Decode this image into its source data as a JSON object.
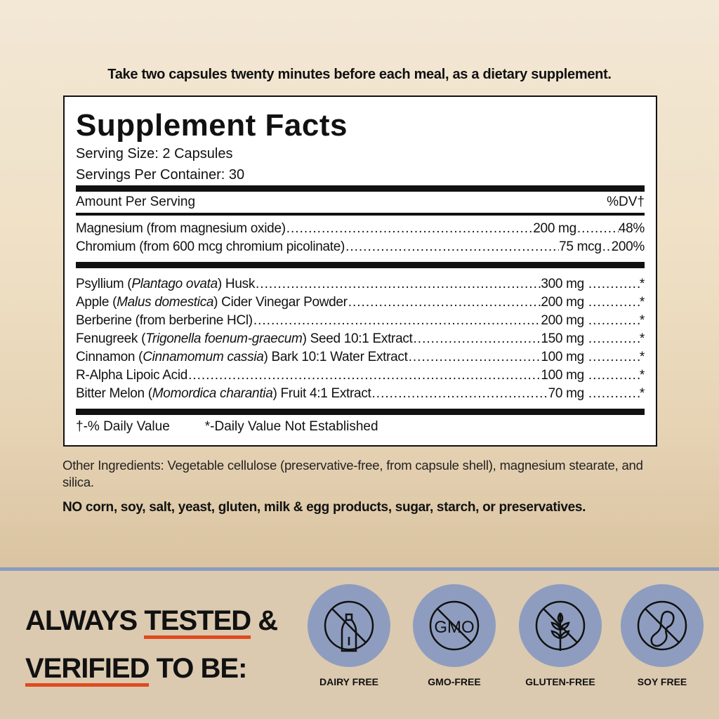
{
  "directions": "Take two capsules twenty minutes before each meal, as a dietary supplement.",
  "facts": {
    "title": "Supplement Facts",
    "serving_size": "Serving Size: 2 Capsules",
    "servings_per_container": "Servings Per Container: 30",
    "amount_header": "Amount Per Serving",
    "dv_header": "%DV†",
    "vitamins": [
      {
        "name": "Magnesium (from magnesium oxide)",
        "amount": "200 mg",
        "dv": "48%"
      },
      {
        "name": "Chromium (from 600 mcg chromium picolinate)",
        "amount": "75 mcg",
        "dv": "200%"
      }
    ],
    "ingredients": [
      {
        "pre": "Psyllium (",
        "latin": "Plantago ovata",
        "post": ") Husk",
        "amount": "300 mg",
        "dv": "*"
      },
      {
        "pre": "Apple (",
        "latin": "Malus domestica",
        "post": ") Cider Vinegar Powder",
        "amount": "200 mg",
        "dv": "*"
      },
      {
        "pre": "Berberine (from berberine HCl)",
        "latin": "",
        "post": "",
        "amount": "200 mg",
        "dv": "*"
      },
      {
        "pre": "Fenugreek (",
        "latin": "Trigonella foenum-graecum",
        "post": ") Seed 10:1 Extract",
        "amount": "150 mg",
        "dv": "*"
      },
      {
        "pre": "Cinnamon (",
        "latin": "Cinnamomum cassia",
        "post": ") Bark 10:1 Water Extract",
        "amount": "100 mg",
        "dv": "*"
      },
      {
        "pre": "R-Alpha Lipoic Acid",
        "latin": "",
        "post": "",
        "amount": "100 mg",
        "dv": "*"
      },
      {
        "pre": "Bitter Melon (",
        "latin": "Momordica charantia",
        "post": ") Fruit 4:1 Extract",
        "amount": "70 mg",
        "dv": "*"
      }
    ],
    "footnote_dv": "†-% Daily Value",
    "footnote_star": "*-Daily Value Not Established"
  },
  "other_ingredients": "Other Ingredients: Vegetable cellulose (preservative-free, from capsule shell), magnesium stearate, and silica.",
  "free_from": "NO corn, soy, salt, yeast, gluten, milk & egg products, sugar, starch, or preservatives.",
  "banner": {
    "line1_a": "ALWAYS ",
    "line1_b": "TESTED",
    "line1_c": " &",
    "line2_a": "VERIFIED",
    "line2_b": " TO BE:",
    "accent_color": "#e04a1e",
    "circle_color": "#8e9dbf",
    "badges": [
      {
        "icon": "no-milk-bottle-icon",
        "label": "DAIRY FREE"
      },
      {
        "icon": "no-gmo-icon",
        "label": "GMO-FREE",
        "icon_text": "GMO"
      },
      {
        "icon": "no-wheat-icon",
        "label": "GLUTEN-FREE"
      },
      {
        "icon": "no-soy-icon",
        "label": "SOY FREE"
      }
    ]
  }
}
